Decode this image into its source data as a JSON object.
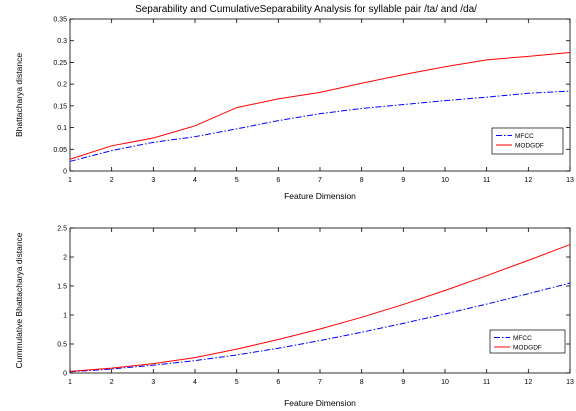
{
  "figure": {
    "title": "Separability and CumulativeSeparability Analysis for syllable pair /ta/ and /da/"
  },
  "chart_data": [
    {
      "type": "line",
      "title": "Separability and CumulativeSeparability Analysis for syllable pair /ta/ and /da/",
      "xlabel": "Feature Dimension",
      "ylabel": "Bhattacharya distance",
      "xlim": [
        1,
        13
      ],
      "ylim": [
        0,
        0.35
      ],
      "xticks": [
        1,
        2,
        3,
        4,
        5,
        6,
        7,
        8,
        9,
        10,
        11,
        12,
        13
      ],
      "yticks": [
        0,
        0.05,
        0.1,
        0.15,
        0.2,
        0.25,
        0.3,
        0.35
      ],
      "grid": false,
      "legend_position": "lower-right",
      "x": [
        1,
        2,
        3,
        4,
        5,
        6,
        7,
        8,
        9,
        10,
        11,
        12,
        13
      ],
      "series": [
        {
          "name": "MFCC",
          "color": "#0000ff",
          "dash": "dashdot",
          "values": [
            0.022,
            0.047,
            0.066,
            0.079,
            0.097,
            0.116,
            0.132,
            0.144,
            0.153,
            0.162,
            0.17,
            0.179,
            0.184
          ]
        },
        {
          "name": "MODGDF",
          "color": "#ff0000",
          "dash": "solid",
          "values": [
            0.027,
            0.058,
            0.076,
            0.104,
            0.146,
            0.166,
            0.181,
            0.202,
            0.222,
            0.24,
            0.256,
            0.264,
            0.273
          ]
        }
      ]
    },
    {
      "type": "line",
      "title": "",
      "xlabel": "Feature Dimension",
      "ylabel": "Cummulative Bhattacharya distance",
      "xlim": [
        1,
        13
      ],
      "ylim": [
        0,
        2.5
      ],
      "xticks": [
        1,
        2,
        3,
        4,
        5,
        6,
        7,
        8,
        9,
        10,
        11,
        12,
        13
      ],
      "yticks": [
        0,
        0.5,
        1,
        1.5,
        2,
        2.5
      ],
      "grid": false,
      "legend_position": "lower-right",
      "x": [
        1,
        2,
        3,
        4,
        5,
        6,
        7,
        8,
        9,
        10,
        11,
        12,
        13
      ],
      "series": [
        {
          "name": "MFCC",
          "color": "#0000ff",
          "dash": "dashdot",
          "values": [
            0.022,
            0.069,
            0.135,
            0.214,
            0.311,
            0.427,
            0.559,
            0.703,
            0.856,
            1.018,
            1.188,
            1.367,
            1.551
          ]
        },
        {
          "name": "MODGDF",
          "color": "#ff0000",
          "dash": "solid",
          "values": [
            0.027,
            0.085,
            0.161,
            0.265,
            0.411,
            0.577,
            0.758,
            0.96,
            1.182,
            1.422,
            1.678,
            1.942,
            2.215
          ]
        }
      ]
    }
  ]
}
